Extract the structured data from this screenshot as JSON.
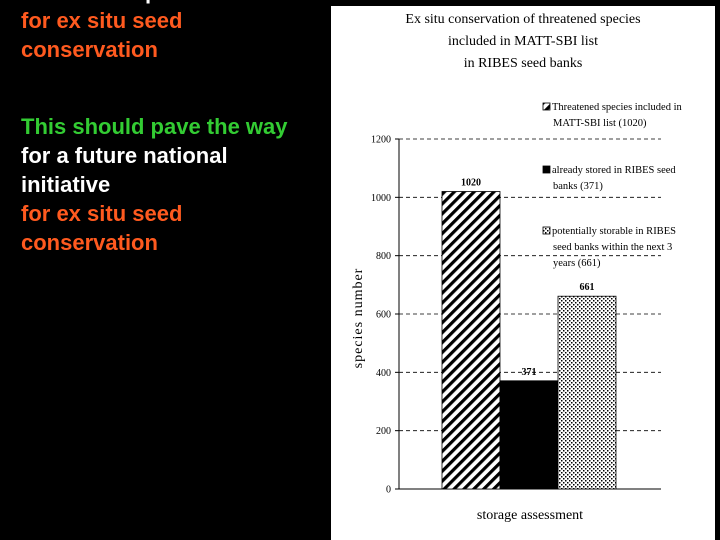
{
  "slide": {
    "line1": "plan",
    "line2": "for ex situ seed",
    "line3": "conservation",
    "line4": "This should pave the way",
    "line5": "for a future national",
    "line6": "initiative",
    "line7": "for ex situ seed",
    "line8": "conservation"
  },
  "colors": {
    "background": "#000000",
    "orange_text": "#ff5a1f",
    "green_text": "#33cc33",
    "white_text": "#ffffff"
  },
  "chart_data": {
    "type": "bar",
    "title": [
      "Ex situ conservation of threatened species",
      "included in MATT-SBI list",
      "in RIBES seed banks"
    ],
    "xlabel": "storage assessment",
    "ylabel": "species number",
    "ylim": [
      0,
      1200
    ],
    "yticks": [
      0,
      200,
      400,
      600,
      800,
      1000,
      1200
    ],
    "grid": true,
    "legend_position": "right",
    "series": [
      {
        "name": [
          "Threatened species included in",
          "MATT-SBI list (1020)"
        ],
        "value": 1020,
        "label": "1020",
        "pattern": "diagonal-hatch"
      },
      {
        "name": [
          "already stored in RIBES seed",
          "banks (371)"
        ],
        "value": 371,
        "label": "371",
        "pattern": "solid-black"
      },
      {
        "name": [
          "potentially storable in RIBES",
          "seed banks within the next 3",
          "years (661)"
        ],
        "value": 661,
        "label": "661",
        "pattern": "dotted"
      }
    ]
  }
}
